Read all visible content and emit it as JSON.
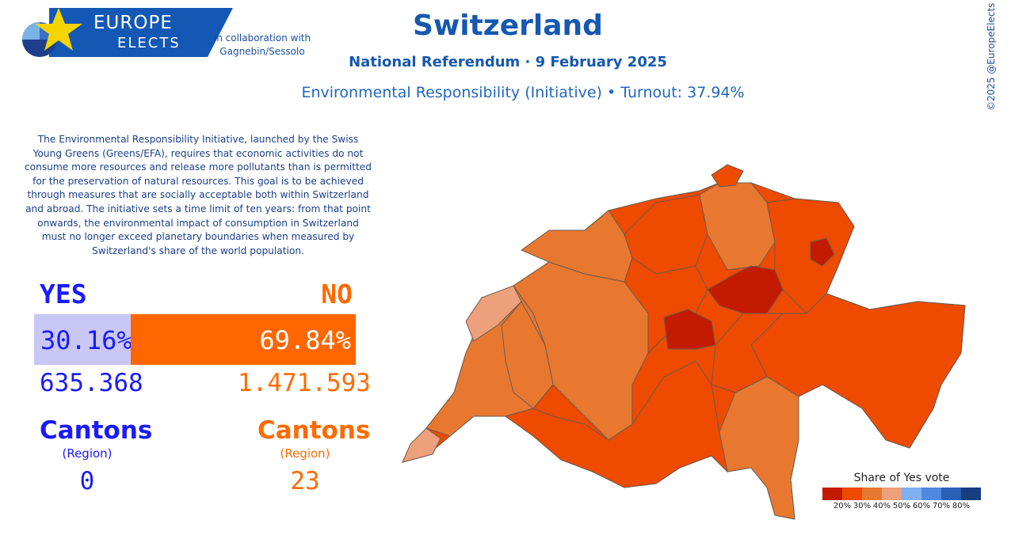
{
  "brand": {
    "line1": "EUROPE",
    "line2": "ELECTS",
    "collaboration": "in collaboration with Gagnebin/Sessolo"
  },
  "header": {
    "title": "Switzerland",
    "subtitle": "National Referendum · 9 February 2025",
    "measure": "Environmental Responsibility (Initiative) • Turnout: 37.94%",
    "copyright": "©2025 @EuropeElects"
  },
  "description": "The Environmental Responsibility Initiative, launched by the Swiss Young Greens (Greens/EFA), requires that economic activities do not consume more resources and release more pollutants than is permitted for the preservation of natural resources. This goal is to be achieved through measures that are socially acceptable both within Switzerland and abroad. The initiative sets a time limit of ten years: from that point onwards, the environmental impact of consumption in Switzerland must no longer exceed planetary boundaries when measured by Switzerland's share of the world population.",
  "results": {
    "yes": {
      "label": "YES",
      "percent_text": "30.16%",
      "percent": 30.16,
      "votes": "635.368",
      "cantons_label": "Cantons",
      "cantons_sub": "(Region)",
      "cantons": "0",
      "color": "#1a1aff"
    },
    "no": {
      "label": "NO",
      "percent_text": "69.84%",
      "percent": 69.84,
      "votes": "1.471.593",
      "cantons_label": "Cantons",
      "cantons_sub": "(Region)",
      "cantons": "23",
      "color": "#ff6600"
    }
  },
  "legend": {
    "title": "Share of Yes vote",
    "colors": [
      "#c41a00",
      "#ee4a00",
      "#e87830",
      "#eda07c",
      "#7fb0f0",
      "#4f88e0",
      "#2a5fb8",
      "#153f80"
    ],
    "ticks": [
      "20%",
      "30%",
      "40%",
      "50%",
      "60%",
      "70%",
      "80%"
    ]
  },
  "map_colors": {
    "dark": "#c41a00",
    "orange": "#ee4a00",
    "mid": "#e87830",
    "light": "#eda07c",
    "border": "#6b5a50"
  }
}
